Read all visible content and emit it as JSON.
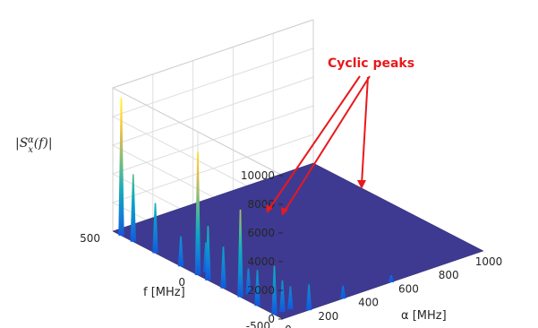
{
  "chart_data": {
    "type": "surface3d",
    "title": "",
    "xlabel": "α [MHz]",
    "ylabel": "f  [MHz]",
    "zlabel": "|S_x^α(f)|",
    "xlim": [
      0,
      1000
    ],
    "ylim": [
      -500,
      500
    ],
    "zlim": [
      0,
      10000
    ],
    "x_ticks": [
      0,
      200,
      400,
      600,
      800,
      1000
    ],
    "y_ticks": [
      500,
      0,
      -500
    ],
    "z_ticks": [
      0,
      2000,
      4000,
      6000,
      8000,
      10000
    ],
    "colormap": [
      "#352a87",
      "#0f5cdd",
      "#1481d6",
      "#06a4ca",
      "#2eb7a4",
      "#87bf77",
      "#d1bb59",
      "#fec832",
      "#f9fb0e"
    ],
    "floor_color": "#3e3a92",
    "grid": true,
    "peaks": [
      {
        "alpha": 0,
        "f": 450,
        "value": 9600
      },
      {
        "alpha": 0,
        "f": 380,
        "value": 4700
      },
      {
        "alpha": 0,
        "f": 250,
        "value": 3500
      },
      {
        "alpha": 0,
        "f": 100,
        "value": 2100
      },
      {
        "alpha": 0,
        "f": 0,
        "value": 8600
      },
      {
        "alpha": 0,
        "f": -60,
        "value": 3800
      },
      {
        "alpha": 0,
        "f": -150,
        "value": 2900
      },
      {
        "alpha": 0,
        "f": -250,
        "value": 6100
      },
      {
        "alpha": 0,
        "f": -350,
        "value": 2500
      },
      {
        "alpha": 0,
        "f": -450,
        "value": 3400
      },
      {
        "alpha": 40,
        "f": 0,
        "value": 2100
      },
      {
        "alpha": 40,
        "f": -250,
        "value": 1800
      },
      {
        "alpha": 40,
        "f": -450,
        "value": 2200
      },
      {
        "alpha": 80,
        "f": -450,
        "value": 1600
      },
      {
        "alpha": 130,
        "f": -500,
        "value": 1800
      },
      {
        "alpha": 300,
        "f": -500,
        "value": 900
      },
      {
        "alpha": 540,
        "f": -500,
        "value": 500
      }
    ],
    "annotations": [
      {
        "text": "Cyclic peaks"
      }
    ]
  }
}
